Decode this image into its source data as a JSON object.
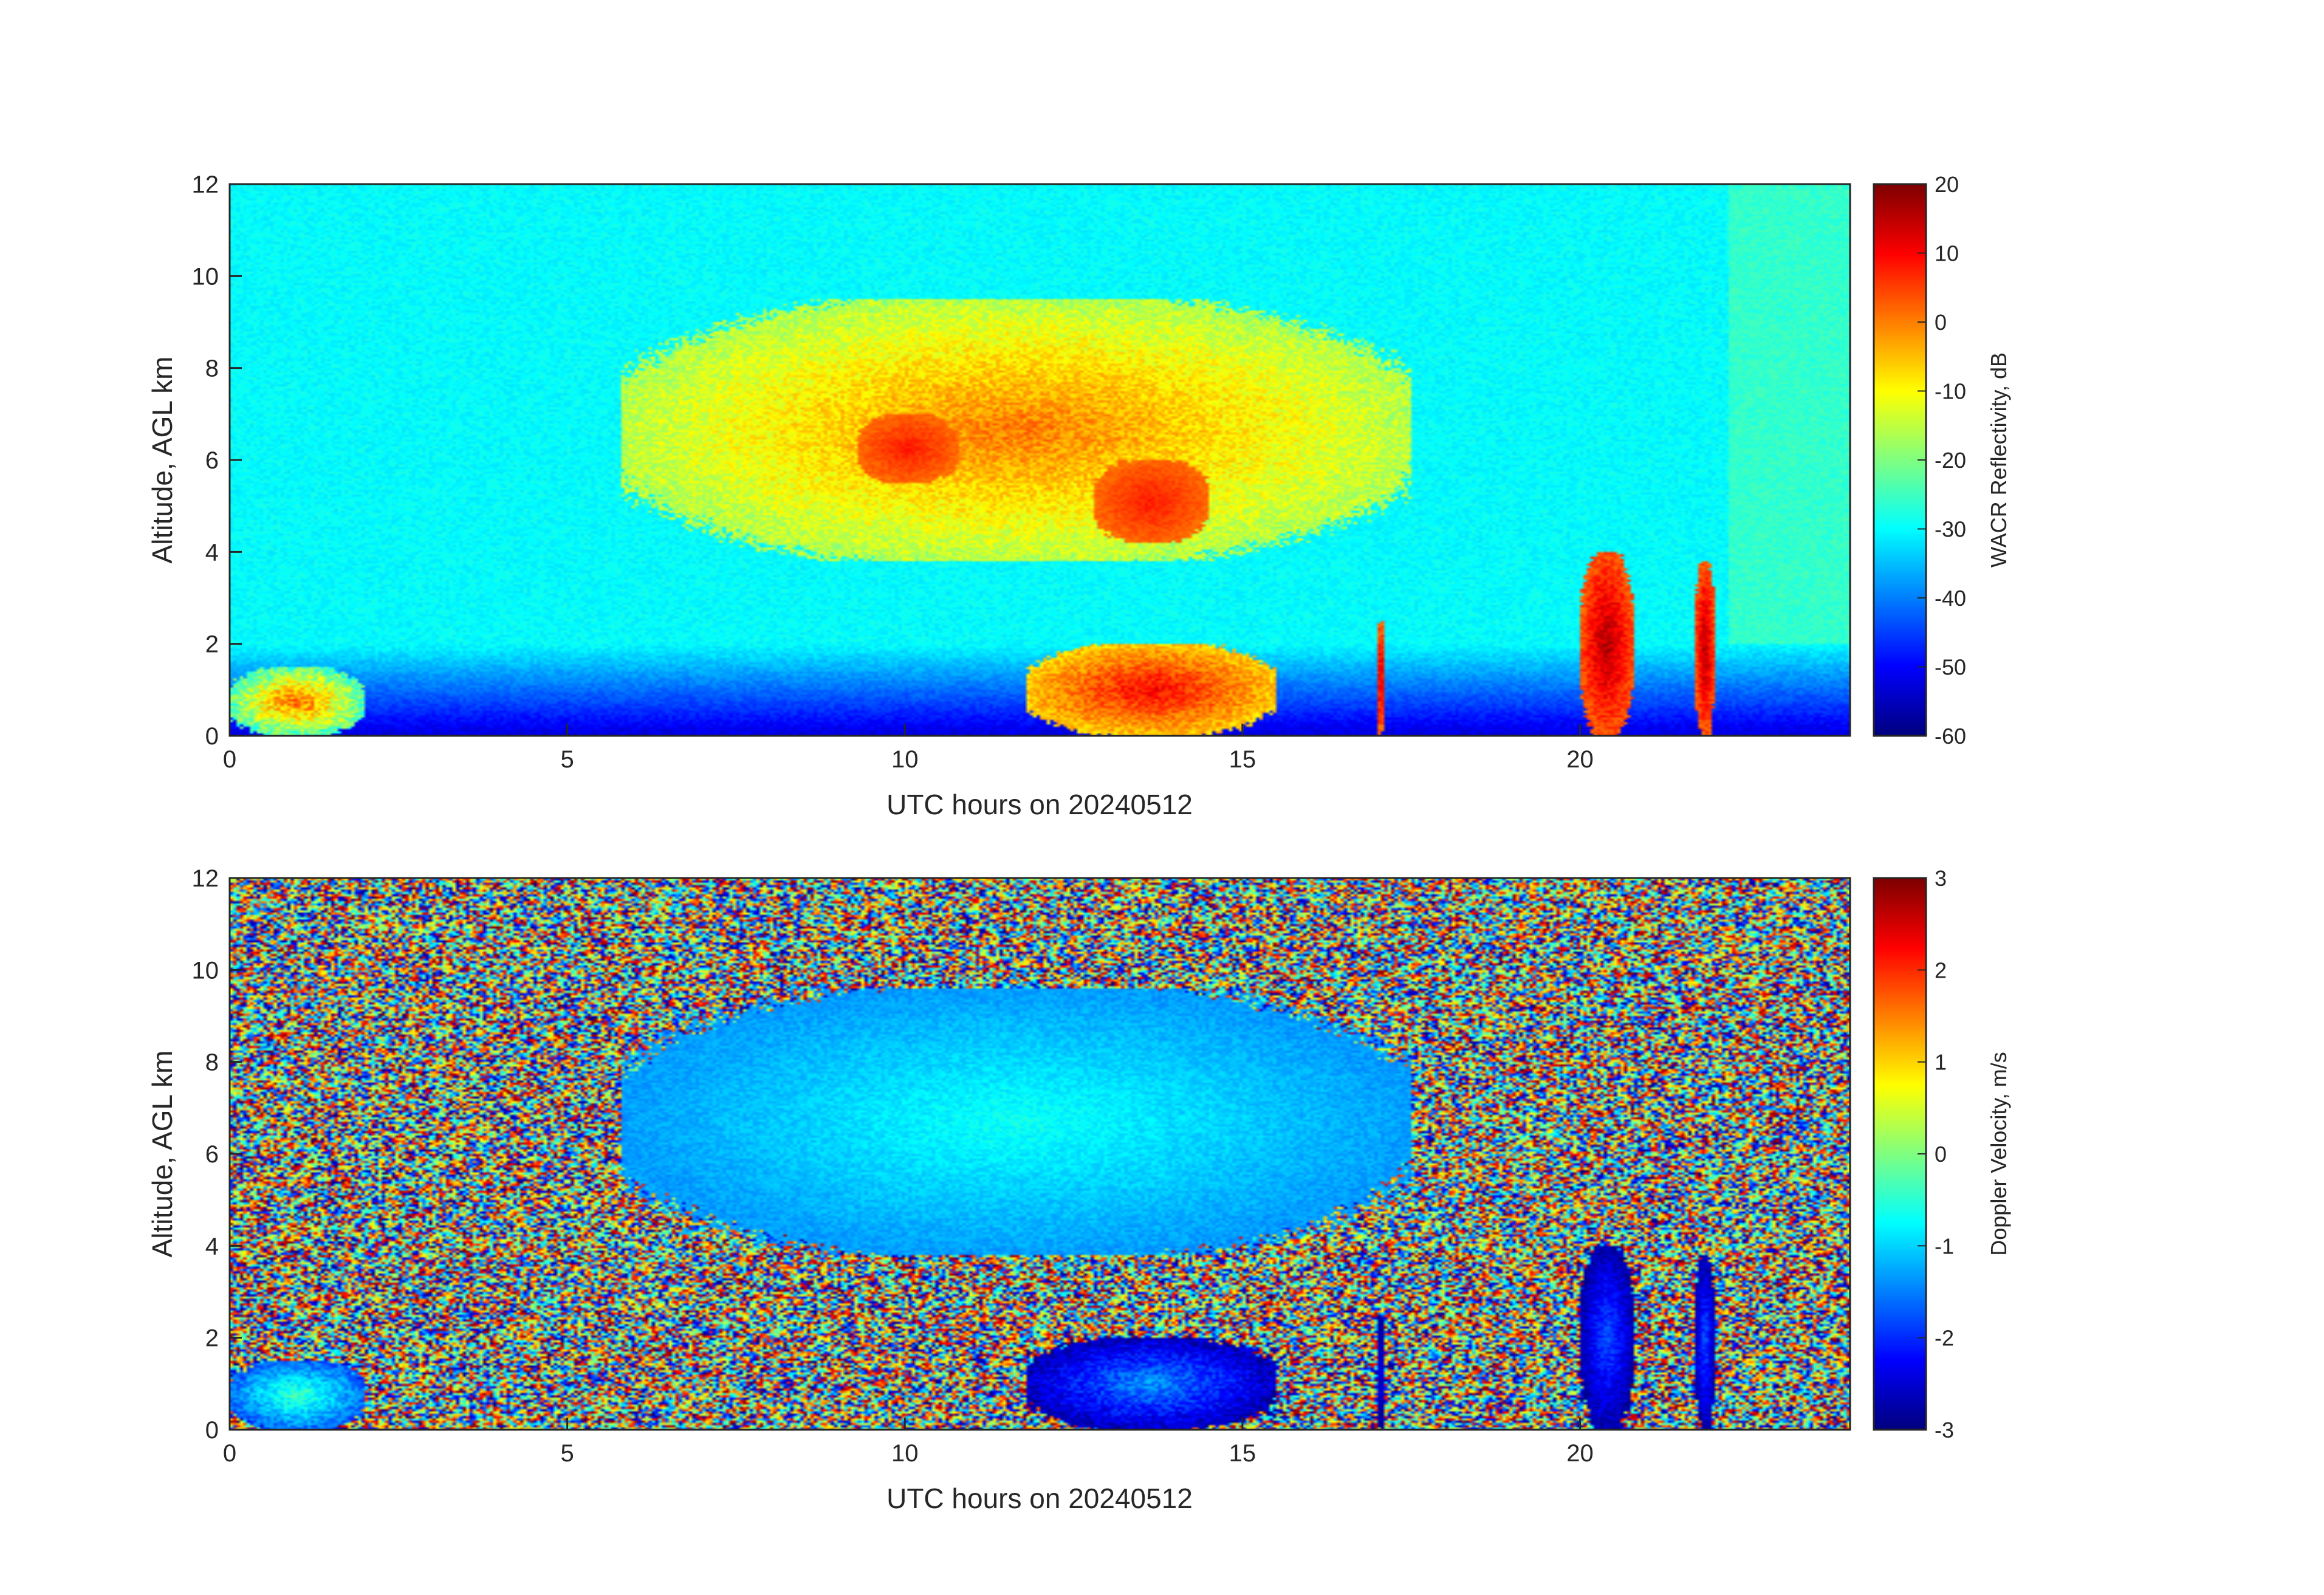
{
  "chart_data": [
    {
      "type": "heatmap",
      "title": "",
      "xlabel": "UTC hours on 20240512",
      "ylabel": "Altitude, AGL km",
      "xlim": [
        0,
        24
      ],
      "ylim": [
        0,
        12
      ],
      "x_ticks": [
        0,
        5,
        10,
        15,
        20
      ],
      "y_ticks": [
        0,
        2,
        4,
        6,
        8,
        10,
        12
      ],
      "colorbar": {
        "label": "WACR Reflectivity, dB",
        "colormap": "jet",
        "range": [
          -60,
          20
        ],
        "ticks": [
          20,
          10,
          0,
          -10,
          -20,
          -30,
          -40,
          -50,
          -60
        ]
      },
      "background": {
        "value_range": [
          -32,
          -28
        ],
        "near_surface_value": -55,
        "clear_sky_shift_after_hour": 22.2
      },
      "regions": [
        {
          "name": "upper cloud layer",
          "x_range": [
            5.8,
            17.5
          ],
          "y_range": [
            3.8,
            9.5
          ],
          "value_range": [
            -20,
            5
          ]
        },
        {
          "name": "upper cloud core 1",
          "x_range": [
            9.3,
            10.8
          ],
          "y_range": [
            5.5,
            7.0
          ],
          "value_range": [
            0,
            10
          ]
        },
        {
          "name": "upper cloud core 2",
          "x_range": [
            12.8,
            14.5
          ],
          "y_range": [
            4.2,
            6.0
          ],
          "value_range": [
            0,
            10
          ]
        },
        {
          "name": "low cloud layer",
          "x_range": [
            11.8,
            15.5
          ],
          "y_range": [
            0,
            2.0
          ],
          "value_range": [
            -10,
            15
          ]
        },
        {
          "name": "convective column",
          "x_range": [
            17.0,
            17.1
          ],
          "y_range": [
            0,
            2.5
          ],
          "value_range": [
            0,
            20
          ]
        },
        {
          "name": "convective columns",
          "x_range": [
            20.0,
            20.8
          ],
          "y_range": [
            0,
            4.0
          ],
          "value_range": [
            0,
            20
          ]
        },
        {
          "name": "convective column",
          "x_range": [
            21.7,
            22.0
          ],
          "y_range": [
            0,
            3.8
          ],
          "value_range": [
            0,
            20
          ]
        },
        {
          "name": "boundary-layer clutter",
          "x_range": [
            0,
            2.0
          ],
          "y_range": [
            0,
            1.5
          ],
          "value_range": [
            -30,
            10
          ]
        }
      ]
    },
    {
      "type": "heatmap",
      "title": "",
      "xlabel": "UTC hours on 20240512",
      "ylabel": "Altitude, AGL km",
      "xlim": [
        0,
        24
      ],
      "ylim": [
        0,
        12
      ],
      "x_ticks": [
        0,
        5,
        10,
        15,
        20
      ],
      "y_ticks": [
        0,
        2,
        4,
        6,
        8,
        10,
        12
      ],
      "colorbar": {
        "label": "Doppler Velocity, m/s",
        "colormap": "jet",
        "range": [
          -3,
          3
        ],
        "ticks": [
          3,
          2,
          1,
          0,
          -1,
          -2,
          -3
        ]
      },
      "background": {
        "pattern": "random noise",
        "value_range": [
          -3,
          3
        ]
      },
      "regions": [
        {
          "name": "upper cloud layer",
          "x_range": [
            5.8,
            17.5
          ],
          "y_range": [
            3.8,
            9.6
          ],
          "value_range": [
            -1.5,
            -0.5
          ]
        },
        {
          "name": "low cloud layer",
          "x_range": [
            11.8,
            15.5
          ],
          "y_range": [
            0,
            2.0
          ],
          "value_range": [
            -3,
            -1
          ]
        },
        {
          "name": "convective column",
          "x_range": [
            17.0,
            17.1
          ],
          "y_range": [
            0,
            2.5
          ],
          "value_range": [
            -3,
            -2
          ]
        },
        {
          "name": "convective columns",
          "x_range": [
            20.0,
            20.8
          ],
          "y_range": [
            0,
            4.0
          ],
          "value_range": [
            -3,
            -1.5
          ]
        },
        {
          "name": "convective column",
          "x_range": [
            21.7,
            22.0
          ],
          "y_range": [
            0,
            3.8
          ],
          "value_range": [
            -3,
            -1.5
          ]
        },
        {
          "name": "boundary-layer clutter",
          "x_range": [
            0,
            2.0
          ],
          "y_range": [
            0,
            1.5
          ],
          "value_range": [
            -2,
            0
          ]
        }
      ]
    }
  ]
}
